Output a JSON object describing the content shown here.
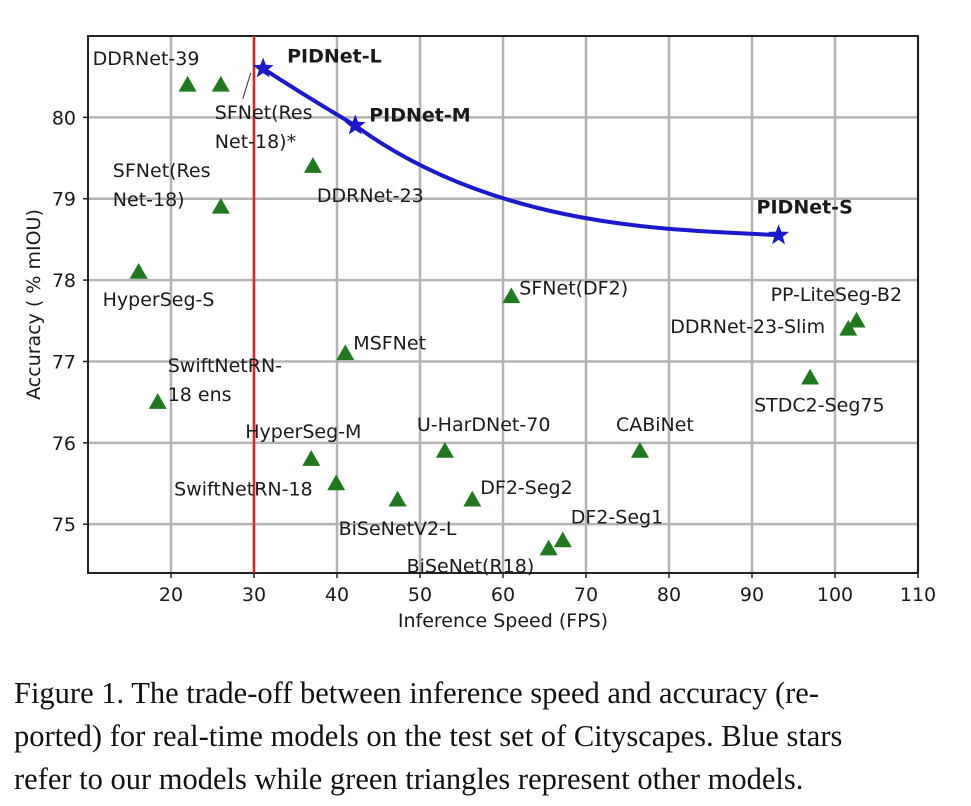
{
  "chart_data": {
    "type": "scatter",
    "xlabel": "Inference Speed (FPS)",
    "ylabel": "Accuracy ( % mIOU)",
    "xlim": [
      10,
      110
    ],
    "ylim": [
      74.4,
      81.0
    ],
    "x_ticks": [
      20,
      30,
      40,
      50,
      60,
      70,
      80,
      90,
      100,
      110
    ],
    "y_ticks": [
      75,
      76,
      77,
      78,
      79,
      80
    ],
    "grid": true,
    "reference_line": {
      "x": 30,
      "color": "#dd2222"
    },
    "colors": {
      "ours": "#1a1acc",
      "others": "#1f7a1f"
    },
    "series": [
      {
        "marker": "star",
        "connected": true,
        "points": [
          {
            "label": "PIDNet-L",
            "x": 31.1,
            "y": 80.6
          },
          {
            "label": "PIDNet-M",
            "x": 42.2,
            "y": 79.9
          },
          {
            "label": "PIDNet-S",
            "x": 93.2,
            "y": 78.55
          }
        ]
      },
      {
        "marker": "triangle",
        "connected": false,
        "points": [
          {
            "label": "DDRNet-39",
            "x": 22.0,
            "y": 80.4
          },
          {
            "label": "SFNet(ResNet-18)*",
            "label_lines": [
              "SFNet(Res",
              "Net-18)*"
            ],
            "x": 26.0,
            "y": 80.4
          },
          {
            "label": "SFNet(ResNet-18)",
            "label_lines": [
              "SFNet(Res",
              "Net-18)"
            ],
            "x": 26.0,
            "y": 78.9
          },
          {
            "label": "DDRNet-23",
            "x": 37.1,
            "y": 79.4
          },
          {
            "label": "HyperSeg-S",
            "x": 16.1,
            "y": 78.1
          },
          {
            "label": "SFNet(DF2)",
            "x": 61.0,
            "y": 77.8
          },
          {
            "label": "MSFNet",
            "x": 41.0,
            "y": 77.1
          },
          {
            "label": "SwiftNetRN-18 ens",
            "label_lines": [
              "SwiftNetRN-",
              "18 ens"
            ],
            "x": 18.4,
            "y": 76.5
          },
          {
            "label": "PP-LiteSeg-B2",
            "x": 102.6,
            "y": 77.5
          },
          {
            "label": "DDRNet-23-Slim",
            "x": 101.6,
            "y": 77.4
          },
          {
            "label": "STDC2-Seg75",
            "x": 97.0,
            "y": 76.8
          },
          {
            "label": "HyperSeg-M",
            "x": 36.9,
            "y": 75.8
          },
          {
            "label": "U-HarDNet-70",
            "x": 53.0,
            "y": 75.9
          },
          {
            "label": "CABiNet",
            "x": 76.5,
            "y": 75.9
          },
          {
            "label": "SwiftNetRN-18",
            "x": 39.9,
            "y": 75.5
          },
          {
            "label": "BiSeNetV2-L",
            "x": 47.3,
            "y": 75.3
          },
          {
            "label": "DF2-Seg2",
            "x": 56.3,
            "y": 75.3
          },
          {
            "label": "DF2-Seg1",
            "x": 67.2,
            "y": 74.8
          },
          {
            "label": "BiSeNet(R18)",
            "x": 65.5,
            "y": 74.7
          }
        ]
      }
    ]
  },
  "caption": {
    "lines": [
      "Figure 1. The trade-off between inference speed and accuracy (re-",
      "ported) for real-time models on the test set of Cityscapes. Blue stars",
      "refer to our models while green triangles represent other models."
    ]
  }
}
